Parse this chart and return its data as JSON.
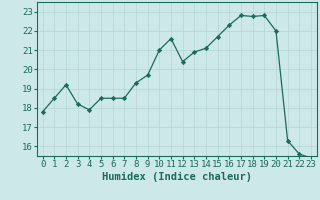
{
  "x": [
    0,
    1,
    2,
    3,
    4,
    5,
    6,
    7,
    8,
    9,
    10,
    11,
    12,
    13,
    14,
    15,
    16,
    17,
    18,
    19,
    20,
    21,
    22,
    23
  ],
  "y": [
    17.8,
    18.5,
    19.2,
    18.2,
    17.9,
    18.5,
    18.5,
    18.5,
    19.3,
    19.7,
    21.0,
    21.6,
    20.4,
    20.9,
    21.1,
    21.7,
    22.3,
    22.8,
    22.75,
    22.8,
    22.0,
    16.3,
    15.6,
    15.4
  ],
  "line_color": "#1a6b5a",
  "marker": "D",
  "marker_size": 2.2,
  "bg_color": "#cce8e8",
  "grid_color": "#b8d8d8",
  "xlabel": "Humidex (Indice chaleur)",
  "ylim": [
    15.5,
    23.5
  ],
  "xlim": [
    -0.5,
    23.5
  ],
  "yticks": [
    16,
    17,
    18,
    19,
    20,
    21,
    22,
    23
  ],
  "xticks": [
    0,
    1,
    2,
    3,
    4,
    5,
    6,
    7,
    8,
    9,
    10,
    11,
    12,
    13,
    14,
    15,
    16,
    17,
    18,
    19,
    20,
    21,
    22,
    23
  ],
  "tick_color": "#1a6b5a",
  "label_fontsize": 6.5,
  "xlabel_fontsize": 7.5
}
